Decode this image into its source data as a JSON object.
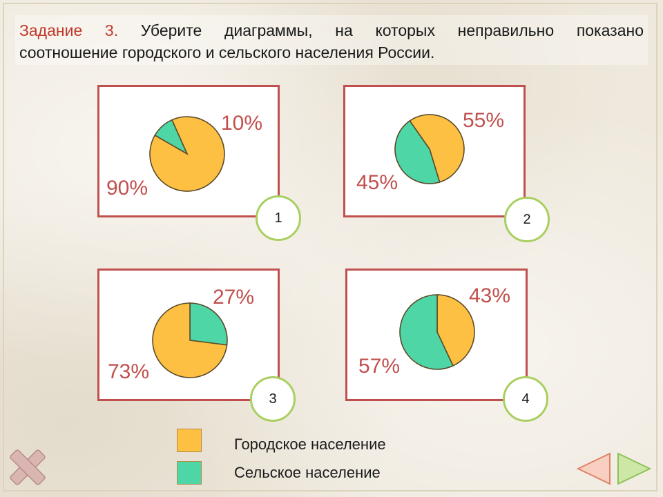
{
  "title": {
    "task_label": "Задание 3.",
    "line1_rest": "Уберите диаграммы, на которых неправильно показано",
    "line2": "соотношение городского и сельского населения России."
  },
  "colors": {
    "urban": "#fdc042",
    "rural": "#4ed6a6",
    "panel_border": "#c0504d",
    "label_color": "#c0504d",
    "circle_border": "#a8cf5f"
  },
  "chart_data": [
    {
      "type": "pie",
      "number": "1",
      "series": [
        {
          "name": "Городское население",
          "value": 90,
          "label": "90%"
        },
        {
          "name": "Сельское население",
          "value": 10,
          "label": "10%"
        }
      ]
    },
    {
      "type": "pie",
      "number": "2",
      "series": [
        {
          "name": "Городское население",
          "value": 55,
          "label": "55%"
        },
        {
          "name": "Сельское население",
          "value": 45,
          "label": "45%"
        }
      ]
    },
    {
      "type": "pie",
      "number": "3",
      "series": [
        {
          "name": "Городское население",
          "value": 73,
          "label": "73%"
        },
        {
          "name": "Сельское население",
          "value": 27,
          "label": "27%"
        }
      ]
    },
    {
      "type": "pie",
      "number": "4",
      "series": [
        {
          "name": "Городское население",
          "value": 43,
          "label": "43%"
        },
        {
          "name": "Сельское население",
          "value": 57,
          "label": "57%"
        }
      ]
    }
  ],
  "legend": {
    "urban_label": "Городское население",
    "rural_label": "Сельское население"
  },
  "nav": {
    "close_icon": "close-icon",
    "prev_icon": "arrow-left-icon",
    "next_icon": "arrow-right-icon"
  }
}
